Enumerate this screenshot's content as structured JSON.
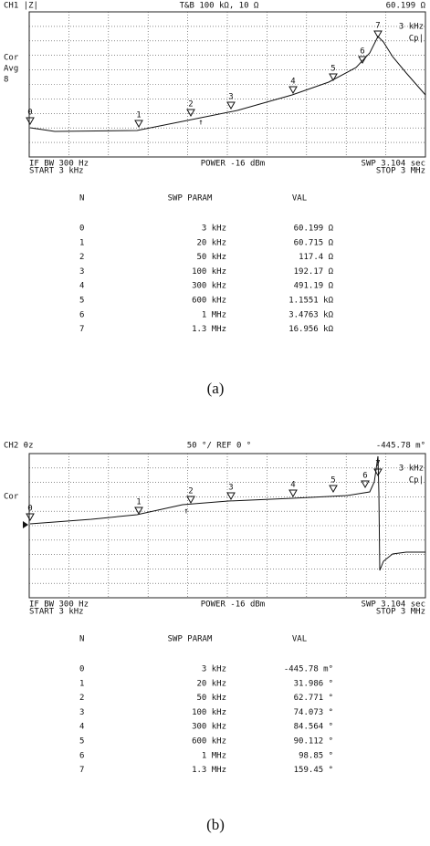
{
  "panels": [
    {
      "header": {
        "channel": "CH1 |Z|",
        "scale": "T&B 100 kΩ, 10 Ω",
        "marker_value": "60.199 Ω"
      },
      "side": [
        "Cor",
        "Avg",
        "8"
      ],
      "inner": [
        "3 kHz",
        "Cp|"
      ],
      "markers": [
        "0",
        "1",
        "2",
        "3",
        "4",
        "5",
        "6",
        "7"
      ],
      "footer": {
        "if_bw": "IF BW 300 Hz",
        "start": "START 3 kHz",
        "power": "POWER -16 dBm",
        "sweep": "SWP 3.104 sec",
        "stop": "STOP 3 MHz"
      },
      "table": {
        "columns": [
          "N",
          "SWP PARAM",
          "VAL"
        ],
        "rows": [
          [
            "0",
            "3 kHz",
            "60.199 Ω"
          ],
          [
            "1",
            "20 kHz",
            "60.715 Ω"
          ],
          [
            "2",
            "50 kHz",
            "117.4 Ω"
          ],
          [
            "3",
            "100 kHz",
            "192.17 Ω"
          ],
          [
            "4",
            "300 kHz",
            "491.19 Ω"
          ],
          [
            "5",
            "600 kHz",
            "1.1551 kΩ"
          ],
          [
            "6",
            "1 MHz",
            "3.4763 kΩ"
          ],
          [
            "7",
            "1.3 MHz",
            "16.956 kΩ"
          ]
        ]
      },
      "caption": "(a)"
    },
    {
      "header": {
        "channel": "CH2 θz",
        "scale": "50 °/ REF 0 °",
        "marker_value": "-445.78 m°"
      },
      "side": [
        "Cor"
      ],
      "inner": [
        "3 kHz",
        "Cp|"
      ],
      "markers": [
        "0",
        "1",
        "2",
        "3",
        "4",
        "5",
        "6",
        "7"
      ],
      "footer": {
        "if_bw": "IF BW 300 Hz",
        "start": "START 3 kHz",
        "power": "POWER -16 dBm",
        "sweep": "SWP 3.104 sec",
        "stop": "STOP 3 MHz"
      },
      "table": {
        "columns": [
          "N",
          "SWP PARAM",
          "VAL"
        ],
        "rows": [
          [
            "0",
            "3 kHz",
            "-445.78 m°"
          ],
          [
            "1",
            "20 kHz",
            "31.986 °"
          ],
          [
            "2",
            "50 kHz",
            "62.771 °"
          ],
          [
            "3",
            "100 kHz",
            "74.073 °"
          ],
          [
            "4",
            "300 kHz",
            "84.564 °"
          ],
          [
            "5",
            "600 kHz",
            "90.112 °"
          ],
          [
            "6",
            "1 MHz",
            "98.85 °"
          ],
          [
            "7",
            "1.3 MHz",
            "159.45 °"
          ]
        ]
      },
      "caption": "(b)"
    }
  ]
}
